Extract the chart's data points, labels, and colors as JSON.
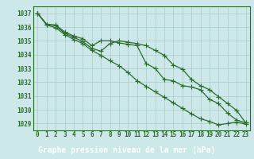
{
  "x": [
    0,
    1,
    2,
    3,
    4,
    5,
    6,
    7,
    8,
    9,
    10,
    11,
    12,
    13,
    14,
    15,
    16,
    17,
    18,
    19,
    20,
    21,
    22,
    23
  ],
  "line1": [
    1037.0,
    1036.2,
    1036.15,
    1035.65,
    1035.35,
    1035.15,
    1034.65,
    1035.0,
    1035.0,
    1034.85,
    1034.75,
    1034.65,
    1033.35,
    1033.0,
    1032.2,
    1032.1,
    1031.75,
    1031.65,
    1031.45,
    1030.75,
    1030.45,
    1029.75,
    1029.25,
    1029.05
  ],
  "line2": [
    1037.0,
    1036.2,
    1036.1,
    1035.55,
    1035.25,
    1034.95,
    1034.45,
    1034.25,
    1034.8,
    1035.0,
    1034.9,
    1034.8,
    1034.65,
    1034.3,
    1033.95,
    1033.25,
    1032.95,
    1032.2,
    1031.75,
    1031.45,
    1030.95,
    1030.45,
    1029.95,
    1029.05
  ],
  "line3": [
    1037.0,
    1036.15,
    1035.95,
    1035.45,
    1035.1,
    1034.8,
    1034.3,
    1033.95,
    1033.55,
    1033.2,
    1032.7,
    1032.1,
    1031.7,
    1031.3,
    1030.9,
    1030.5,
    1030.1,
    1029.7,
    1029.35,
    1029.15,
    1028.9,
    1029.0,
    1029.1,
    1028.95
  ],
  "ylim_min": 1028.5,
  "ylim_max": 1037.5,
  "yticks": [
    1029,
    1030,
    1031,
    1032,
    1033,
    1034,
    1035,
    1036,
    1037
  ],
  "xticks": [
    0,
    1,
    2,
    3,
    4,
    5,
    6,
    7,
    8,
    9,
    10,
    11,
    12,
    13,
    14,
    15,
    16,
    17,
    18,
    19,
    20,
    21,
    22,
    23
  ],
  "xlabel": "Graphe pression niveau de la mer (hPa)",
  "line_color": "#2d6a2d",
  "bg_color": "#cce8e8",
  "grid_color": "#aacccc",
  "marker": "+",
  "markersize": 4,
  "linewidth": 0.9,
  "xlabel_fontsize": 7,
  "tick_fontsize": 5.5,
  "tick_color": "#2d6a2d",
  "label_bottom_color": "#1a4a1a",
  "bottom_bar_color": "#3a7a3a"
}
